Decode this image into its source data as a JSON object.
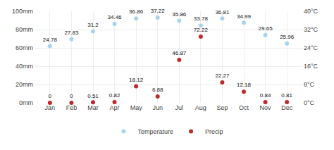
{
  "chart_data": {
    "type": "scatter",
    "categories": [
      "Jan",
      "Feb",
      "Mar",
      "Apr",
      "May",
      "Jun",
      "Jul",
      "Aug",
      "Sep",
      "Oct",
      "Nov",
      "Dec"
    ],
    "series": [
      {
        "name": "Temperature",
        "color": "#a8d4f0",
        "axis": "y2",
        "values": [
          24.78,
          27.83,
          31.2,
          34.46,
          36.86,
          37.22,
          35.86,
          33.78,
          36.81,
          34.99,
          29.65,
          25.96
        ]
      },
      {
        "name": "Precip",
        "color": "#c0282d",
        "values": [
          0,
          0,
          0.51,
          0.82,
          18.12,
          6.88,
          46.87,
          72.22,
          22.27,
          12.18,
          0.84,
          0.81
        ]
      }
    ],
    "ylim": [
      0,
      100
    ],
    "yticks": [
      {
        "value": 0,
        "label": "0mm"
      },
      {
        "value": 20,
        "label": "20mm"
      },
      {
        "value": 40,
        "label": "40mm"
      },
      {
        "value": 60,
        "label": "60mm"
      },
      {
        "value": 80,
        "label": "80mm"
      },
      {
        "value": 100,
        "label": "100mm"
      }
    ],
    "y2lim": [
      0,
      40
    ],
    "y2ticks": [
      {
        "value": 0,
        "label": "0°C"
      },
      {
        "value": 8,
        "label": "8°C"
      },
      {
        "value": 16,
        "label": "16°C"
      },
      {
        "value": 24,
        "label": "24°C"
      },
      {
        "value": 32,
        "label": "32°C"
      },
      {
        "value": 40,
        "label": "40°C"
      }
    ],
    "grid": true,
    "legend": "bottom",
    "data_labels": true,
    "marker": "circle"
  }
}
